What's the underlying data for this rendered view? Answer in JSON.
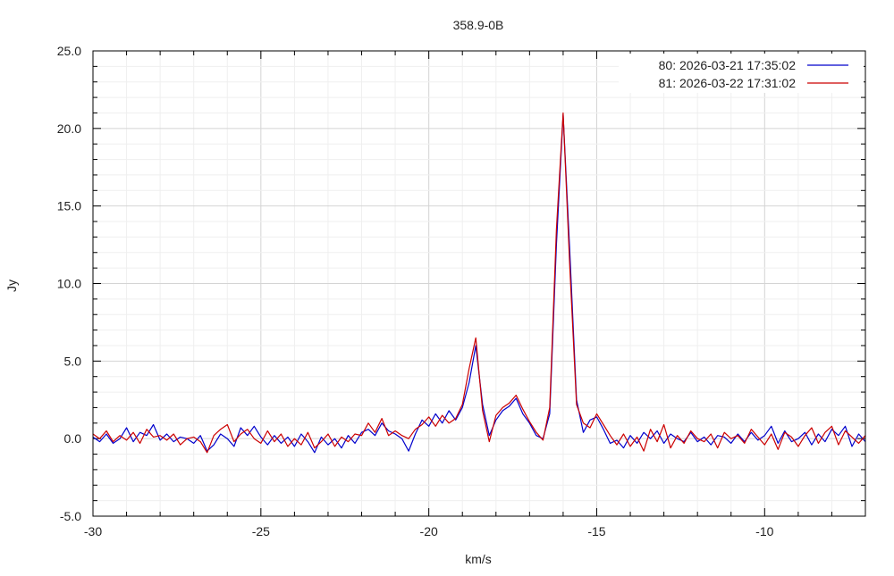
{
  "chart_data": {
    "type": "line",
    "title": "358.9-0B",
    "xlabel": "km/s",
    "ylabel": "Jy",
    "xlim": [
      -30,
      -7
    ],
    "ylim": [
      -5,
      25
    ],
    "x_ticks": [
      -30,
      -25,
      -20,
      -15,
      -10
    ],
    "y_ticks": [
      "-5.0",
      "0.0",
      "5.0",
      "10.0",
      "15.0",
      "20.0",
      "25.0"
    ],
    "grid": true,
    "legend_position": "top-right",
    "x": [
      -30.0,
      -29.8,
      -29.6,
      -29.4,
      -29.2,
      -29.0,
      -28.8,
      -28.6,
      -28.4,
      -28.2,
      -28.0,
      -27.8,
      -27.6,
      -27.4,
      -27.2,
      -27.0,
      -26.8,
      -26.6,
      -26.4,
      -26.2,
      -26.0,
      -25.8,
      -25.6,
      -25.4,
      -25.2,
      -25.0,
      -24.8,
      -24.6,
      -24.4,
      -24.2,
      -24.0,
      -23.8,
      -23.6,
      -23.4,
      -23.2,
      -23.0,
      -22.8,
      -22.6,
      -22.4,
      -22.2,
      -22.0,
      -21.8,
      -21.6,
      -21.4,
      -21.2,
      -21.0,
      -20.8,
      -20.6,
      -20.4,
      -20.2,
      -20.0,
      -19.8,
      -19.6,
      -19.4,
      -19.2,
      -19.0,
      -18.8,
      -18.6,
      -18.4,
      -18.2,
      -18.0,
      -17.8,
      -17.6,
      -17.4,
      -17.2,
      -17.0,
      -16.8,
      -16.6,
      -16.4,
      -16.2,
      -16.0,
      -15.8,
      -15.6,
      -15.4,
      -15.2,
      -15.0,
      -14.8,
      -14.6,
      -14.4,
      -14.2,
      -14.0,
      -13.8,
      -13.6,
      -13.4,
      -13.2,
      -13.0,
      -12.8,
      -12.6,
      -12.4,
      -12.2,
      -12.0,
      -11.8,
      -11.6,
      -11.4,
      -11.2,
      -11.0,
      -10.8,
      -10.6,
      -10.4,
      -10.2,
      -10.0,
      -9.8,
      -9.6,
      -9.4,
      -9.2,
      -9.0,
      -8.8,
      -8.6,
      -8.4,
      -8.2,
      -8.0,
      -7.8,
      -7.6,
      -7.4,
      -7.2,
      -7.0
    ],
    "series": [
      {
        "name": "80:   2026-03-21 17:35:02",
        "color": "#0000cc",
        "values": [
          0.1,
          -0.2,
          0.3,
          -0.3,
          0.0,
          0.7,
          -0.2,
          0.4,
          0.2,
          0.9,
          -0.1,
          0.3,
          -0.2,
          0.1,
          0.0,
          -0.3,
          0.2,
          -0.8,
          -0.4,
          0.3,
          0.0,
          -0.5,
          0.7,
          0.2,
          0.8,
          0.1,
          -0.4,
          0.2,
          -0.3,
          0.1,
          -0.5,
          0.3,
          -0.2,
          -0.9,
          0.1,
          -0.4,
          0.0,
          -0.6,
          0.2,
          -0.3,
          0.4,
          0.6,
          0.2,
          1.0,
          0.5,
          0.3,
          0.0,
          -0.8,
          0.3,
          1.2,
          0.8,
          1.6,
          1.0,
          1.8,
          1.2,
          2.0,
          3.6,
          6.0,
          2.2,
          0.2,
          1.2,
          1.8,
          2.1,
          2.6,
          1.6,
          1.0,
          0.2,
          0.0,
          1.6,
          12.5,
          20.9,
          12.0,
          2.5,
          0.4,
          1.2,
          1.4,
          0.6,
          -0.3,
          -0.1,
          -0.6,
          0.2,
          -0.3,
          0.4,
          0.0,
          0.5,
          -0.3,
          0.3,
          0.0,
          -0.2,
          0.4,
          -0.2,
          0.1,
          -0.4,
          0.2,
          0.1,
          -0.3,
          0.3,
          -0.2,
          0.4,
          -0.1,
          0.2,
          0.8,
          -0.3,
          0.5,
          -0.2,
          0.0,
          0.4,
          -0.4,
          0.3,
          -0.2,
          0.6,
          0.2,
          0.8,
          -0.5,
          0.3,
          -0.2
        ]
      },
      {
        "name": "81:   2026-03-22 17:31:02",
        "color": "#cc0000",
        "values": [
          0.3,
          0.0,
          0.5,
          -0.2,
          0.2,
          -0.1,
          0.4,
          -0.3,
          0.6,
          0.1,
          0.2,
          -0.1,
          0.3,
          -0.4,
          0.0,
          0.1,
          -0.2,
          -0.9,
          0.2,
          0.6,
          0.9,
          -0.2,
          0.3,
          0.6,
          0.0,
          -0.3,
          0.5,
          -0.2,
          0.3,
          -0.5,
          0.0,
          -0.4,
          0.4,
          -0.6,
          -0.2,
          0.3,
          -0.5,
          0.1,
          -0.2,
          0.3,
          0.2,
          1.0,
          0.4,
          1.3,
          0.2,
          0.5,
          0.2,
          0.0,
          0.6,
          0.9,
          1.4,
          0.8,
          1.5,
          1.0,
          1.3,
          2.2,
          4.5,
          6.5,
          1.8,
          -0.2,
          1.5,
          2.0,
          2.3,
          2.8,
          1.9,
          1.1,
          0.4,
          -0.1,
          2.0,
          13.5,
          21.0,
          11.0,
          2.2,
          1.0,
          0.7,
          1.6,
          0.9,
          0.2,
          -0.4,
          0.3,
          -0.5,
          0.1,
          -0.8,
          0.6,
          -0.2,
          0.9,
          -0.6,
          0.2,
          -0.3,
          0.5,
          0.0,
          -0.2,
          0.3,
          -0.6,
          0.4,
          0.0,
          0.2,
          -0.3,
          0.6,
          0.1,
          -0.4,
          0.3,
          -0.7,
          0.4,
          0.1,
          -0.5,
          0.2,
          0.7,
          -0.3,
          0.4,
          0.8,
          -0.4,
          0.5,
          0.1,
          -0.3,
          0.2
        ]
      }
    ]
  }
}
